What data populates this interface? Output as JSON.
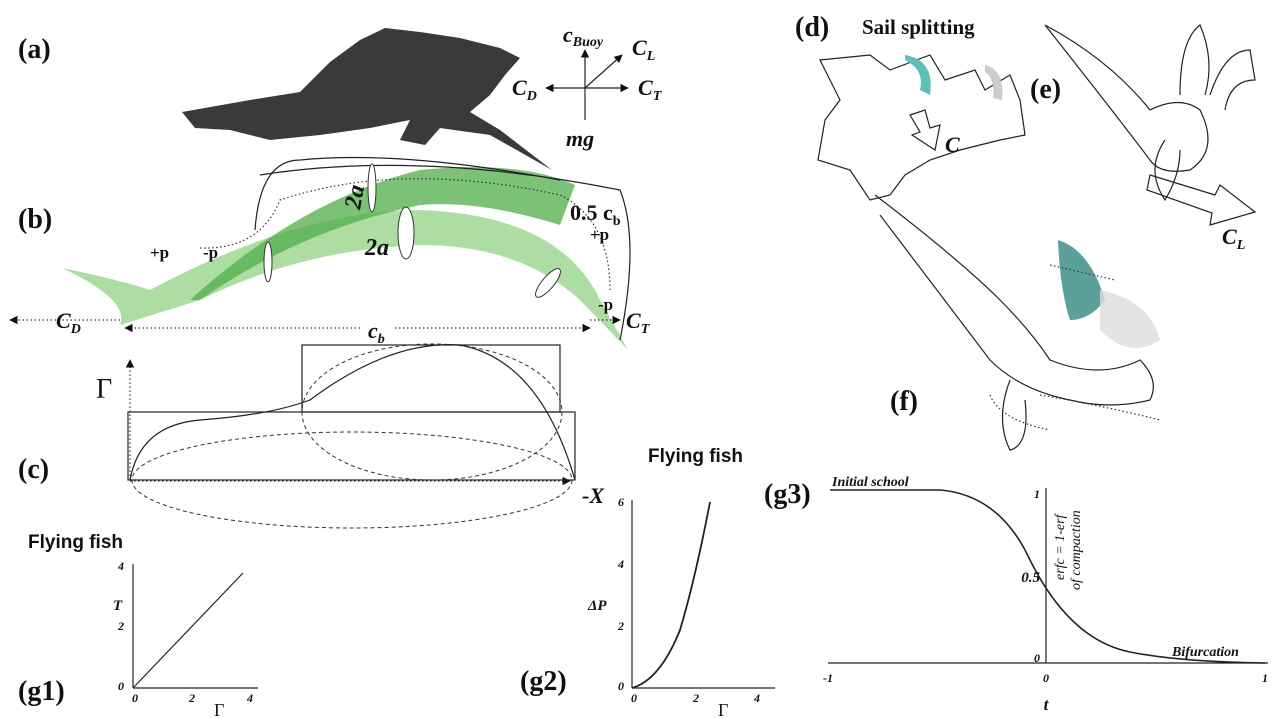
{
  "panel_a": {
    "label": "(a)",
    "buoy": {
      "main": "c",
      "sub": "Buoy"
    },
    "lift": {
      "main": "C",
      "sub": "L"
    },
    "drag": {
      "main": "C",
      "sub": "D"
    },
    "thrust": {
      "main": "C",
      "sub": "T"
    },
    "weight": "mg"
  },
  "panel_b": {
    "label": "(b)",
    "width_upper": "2a",
    "width_lower": "2a",
    "half_chord": {
      "main": "0.5 c",
      "sub": "b"
    },
    "pressure_left_plus": "+p",
    "pressure_left_minus": "-p",
    "pressure_right_plus": "+p",
    "pressure_right_minus": "-p",
    "drag": {
      "main": "C",
      "sub": "D"
    },
    "thrust": {
      "main": "C",
      "sub": "T"
    },
    "chord": {
      "main": "c",
      "sub": "b"
    }
  },
  "panel_c": {
    "label": "(c)",
    "y_label": "Γ",
    "x_label": "-X"
  },
  "panel_g1": {
    "title": "Flying fish",
    "label": "(g1)",
    "y_label": "T",
    "x_label": "Γ",
    "yticks": [
      "0",
      "2",
      "4"
    ],
    "xticks": [
      "0",
      "2",
      "4"
    ]
  },
  "panel_g2": {
    "title": "Flying fish",
    "label": "(g2)",
    "y_label": "ΔP",
    "x_label": "Γ",
    "yticks": [
      "0",
      "2",
      "4",
      "6"
    ],
    "xticks": [
      "0",
      "2",
      "4"
    ]
  },
  "panel_g3": {
    "label": "(g3)",
    "start_label": "Initial school",
    "end_label": "Bifurcation",
    "y_label_1": "erfc = 1-erf",
    "y_label_2": "of compaction",
    "x_label": "t",
    "xticks": [
      "-1",
      "0",
      "1"
    ],
    "yticks": [
      "1",
      "0.5",
      "0"
    ]
  },
  "panel_d": {
    "label": "(d)",
    "title": "Sail splitting",
    "force": "C"
  },
  "panel_e": {
    "label": "(e)",
    "lift": {
      "main": "C",
      "sub": "L"
    }
  },
  "panel_f": {
    "label": "(f)"
  }
}
